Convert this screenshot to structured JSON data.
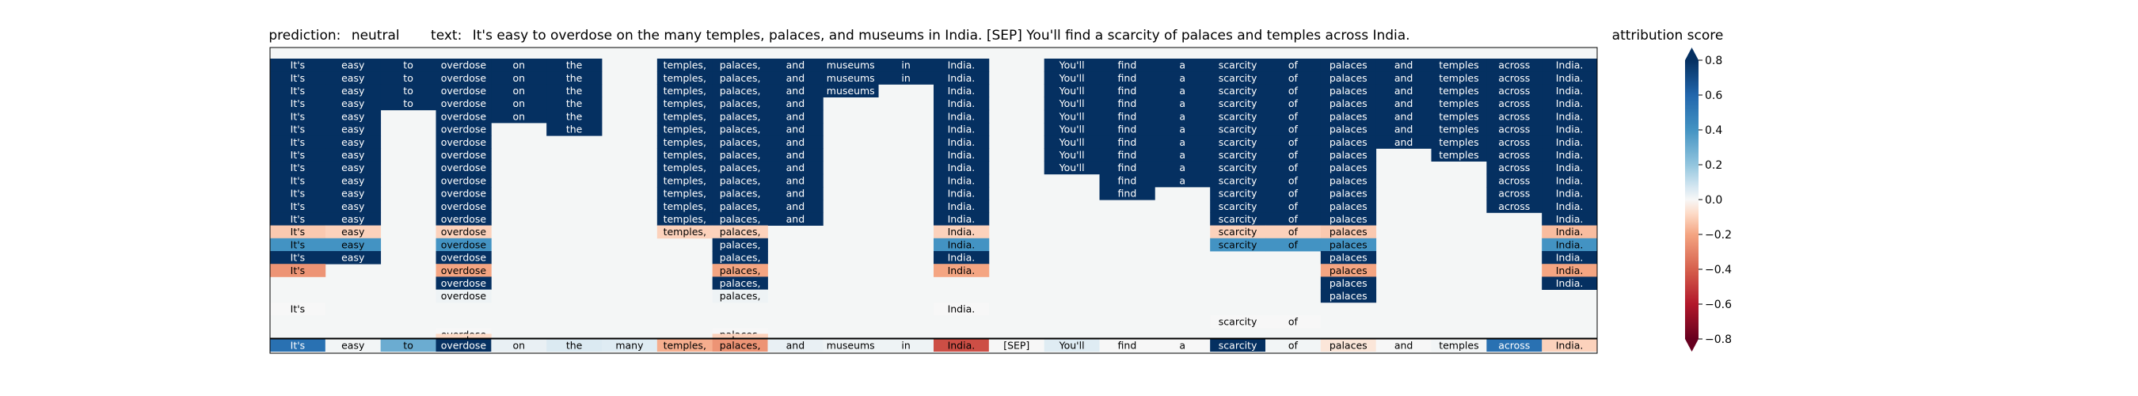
{
  "chart_data": {
    "type": "heatmap",
    "title": {
      "prediction_label": "prediction:",
      "prediction": "neutral",
      "text_label": "text:",
      "text": "It's easy to overdose on the many temples, palaces, and museums in India. [SEP] You'll find a scarcity of palaces and temples across India."
    },
    "colorbar": {
      "label": "attribution score",
      "ticks": [
        0.8,
        0.6,
        0.4,
        0.2,
        0.0,
        -0.2,
        -0.4,
        -0.6,
        -0.8
      ],
      "tick_labels": [
        "0.8",
        "0.6",
        "0.4",
        "0.2",
        "0.0",
        "−0.2",
        "−0.4",
        "−0.6",
        "−0.8"
      ],
      "range": [
        -0.8,
        0.8
      ],
      "colormap": "RdBu"
    },
    "tokens": [
      "It's",
      "easy",
      "to",
      "overdose",
      "on",
      "the",
      "many",
      "temples,",
      "palaces,",
      "and",
      "museums",
      "in",
      "India.",
      "[SEP]",
      "You'll",
      "find",
      "a",
      "scarcity",
      "of",
      "palaces",
      "and",
      "temples",
      "across",
      "India."
    ],
    "rows_present": [
      [
        1,
        1,
        1,
        1,
        1,
        1,
        0,
        1,
        1,
        1,
        1,
        1,
        1,
        0,
        1,
        1,
        1,
        1,
        1,
        1,
        1,
        1,
        1,
        1
      ],
      [
        1,
        1,
        1,
        1,
        1,
        1,
        0,
        1,
        1,
        1,
        1,
        1,
        1,
        0,
        1,
        1,
        1,
        1,
        1,
        1,
        1,
        1,
        1,
        1
      ],
      [
        1,
        1,
        1,
        1,
        1,
        1,
        0,
        1,
        1,
        1,
        1,
        0,
        1,
        0,
        1,
        1,
        1,
        1,
        1,
        1,
        1,
        1,
        1,
        1
      ],
      [
        1,
        1,
        1,
        1,
        1,
        1,
        0,
        1,
        1,
        1,
        0,
        0,
        1,
        0,
        1,
        1,
        1,
        1,
        1,
        1,
        1,
        1,
        1,
        1
      ],
      [
        1,
        1,
        0,
        1,
        1,
        1,
        0,
        1,
        1,
        1,
        0,
        0,
        1,
        0,
        1,
        1,
        1,
        1,
        1,
        1,
        1,
        1,
        1,
        1
      ],
      [
        1,
        1,
        0,
        1,
        0,
        1,
        0,
        1,
        1,
        1,
        0,
        0,
        1,
        0,
        1,
        1,
        1,
        1,
        1,
        1,
        1,
        1,
        1,
        1
      ],
      [
        1,
        1,
        0,
        1,
        0,
        0,
        0,
        1,
        1,
        1,
        0,
        0,
        1,
        0,
        1,
        1,
        1,
        1,
        1,
        1,
        1,
        1,
        1,
        1
      ],
      [
        1,
        1,
        0,
        1,
        0,
        0,
        0,
        1,
        1,
        1,
        0,
        0,
        1,
        0,
        1,
        1,
        1,
        1,
        1,
        1,
        0,
        1,
        1,
        1
      ],
      [
        1,
        1,
        0,
        1,
        0,
        0,
        0,
        1,
        1,
        1,
        0,
        0,
        1,
        0,
        1,
        1,
        1,
        1,
        1,
        1,
        0,
        0,
        1,
        1
      ],
      [
        1,
        1,
        0,
        1,
        0,
        0,
        0,
        1,
        1,
        1,
        0,
        0,
        1,
        0,
        0,
        1,
        1,
        1,
        1,
        1,
        0,
        0,
        1,
        1
      ],
      [
        1,
        1,
        0,
        1,
        0,
        0,
        0,
        1,
        1,
        1,
        0,
        0,
        1,
        0,
        0,
        1,
        0,
        1,
        1,
        1,
        0,
        0,
        1,
        1
      ],
      [
        1,
        1,
        0,
        1,
        0,
        0,
        0,
        1,
        1,
        1,
        0,
        0,
        1,
        0,
        0,
        0,
        0,
        1,
        1,
        1,
        0,
        0,
        1,
        1
      ],
      [
        1,
        1,
        0,
        1,
        0,
        0,
        0,
        1,
        1,
        1,
        0,
        0,
        1,
        0,
        0,
        0,
        0,
        1,
        1,
        1,
        0,
        0,
        0,
        1
      ],
      [
        1,
        1,
        0,
        1,
        0,
        0,
        0,
        1,
        1,
        0,
        0,
        0,
        1,
        0,
        0,
        0,
        0,
        1,
        1,
        1,
        0,
        0,
        0,
        1
      ],
      [
        1,
        1,
        0,
        1,
        0,
        0,
        0,
        0,
        1,
        0,
        0,
        0,
        1,
        0,
        0,
        0,
        0,
        1,
        1,
        1,
        0,
        0,
        0,
        1
      ],
      [
        1,
        1,
        0,
        1,
        0,
        0,
        0,
        0,
        1,
        0,
        0,
        0,
        1,
        0,
        0,
        0,
        0,
        0,
        0,
        1,
        0,
        0,
        0,
        1
      ],
      [
        1,
        0,
        0,
        1,
        0,
        0,
        0,
        0,
        1,
        0,
        0,
        0,
        1,
        0,
        0,
        0,
        0,
        0,
        0,
        1,
        0,
        0,
        0,
        1
      ],
      [
        0,
        0,
        0,
        1,
        0,
        0,
        0,
        0,
        1,
        0,
        0,
        0,
        0,
        0,
        0,
        0,
        0,
        0,
        0,
        1,
        0,
        0,
        0,
        1
      ],
      [
        0,
        0,
        0,
        1,
        0,
        0,
        0,
        0,
        1,
        0,
        0,
        0,
        0,
        0,
        0,
        0,
        0,
        0,
        0,
        1,
        0,
        0,
        0,
        0
      ],
      [
        1,
        0,
        0,
        0,
        0,
        0,
        0,
        0,
        0,
        0,
        0,
        0,
        1,
        0,
        0,
        0,
        0,
        0,
        0,
        0,
        0,
        0,
        0,
        0
      ],
      [
        0,
        0,
        0,
        0,
        0,
        0,
        0,
        0,
        0,
        0,
        0,
        0,
        0,
        0,
        0,
        0,
        0,
        1,
        1,
        0,
        0,
        0,
        0,
        0
      ],
      [
        0,
        0,
        0,
        1,
        0,
        0,
        0,
        0,
        1,
        0,
        0,
        0,
        0,
        0,
        0,
        0,
        0,
        0,
        0,
        0,
        0,
        0,
        0,
        0
      ]
    ],
    "rows_values": [
      [
        0.8,
        0.8,
        0.8,
        0.8,
        0.8,
        0.8,
        0,
        0.8,
        0.8,
        0.8,
        0.8,
        0.8,
        0.8,
        0,
        0.8,
        0.8,
        0.8,
        0.8,
        0.8,
        0.8,
        0.8,
        0.8,
        0.8,
        0.8
      ],
      [
        0.8,
        0.8,
        0.8,
        0.8,
        0.8,
        0.8,
        0,
        0.8,
        0.8,
        0.8,
        0.8,
        0.8,
        0.8,
        0,
        0.8,
        0.8,
        0.8,
        0.8,
        0.8,
        0.8,
        0.8,
        0.8,
        0.8,
        0.8
      ],
      [
        0.8,
        0.8,
        0.8,
        0.8,
        0.8,
        0.8,
        0,
        0.8,
        0.8,
        0.8,
        0.8,
        0,
        0.8,
        0,
        0.8,
        0.8,
        0.8,
        0.8,
        0.8,
        0.8,
        0.8,
        0.8,
        0.8,
        0.8
      ],
      [
        0.8,
        0.8,
        0.8,
        0.8,
        0.8,
        0.8,
        0,
        0.8,
        0.8,
        0.8,
        0,
        0,
        0.8,
        0,
        0.8,
        0.8,
        0.8,
        0.8,
        0.8,
        0.8,
        0.8,
        0.8,
        0.8,
        0.8
      ],
      [
        0.8,
        0.8,
        0,
        0.8,
        0.8,
        0.8,
        0,
        0.8,
        0.8,
        0.8,
        0,
        0,
        0.8,
        0,
        0.8,
        0.8,
        0.8,
        0.8,
        0.8,
        0.8,
        0.8,
        0.8,
        0.8,
        0.8
      ],
      [
        0.8,
        0.8,
        0,
        0.8,
        0,
        0.8,
        0,
        0.8,
        0.8,
        0.8,
        0,
        0,
        0.8,
        0,
        0.8,
        0.8,
        0.8,
        0.8,
        0.8,
        0.8,
        0.8,
        0.8,
        0.8,
        0.8
      ],
      [
        0.8,
        0.8,
        0,
        0.8,
        0,
        0,
        0,
        0.8,
        0.8,
        0.8,
        0,
        0,
        0.8,
        0,
        0.8,
        0.8,
        0.8,
        0.8,
        0.8,
        0.8,
        0.8,
        0.8,
        0.8,
        0.8
      ],
      [
        0.8,
        0.8,
        0,
        0.8,
        0,
        0,
        0,
        0.8,
        0.8,
        0.8,
        0,
        0,
        0.8,
        0,
        0.8,
        0.8,
        0.8,
        0.8,
        0.8,
        0.8,
        0,
        0.8,
        0.8,
        0.8
      ],
      [
        0.8,
        0.8,
        0,
        0.8,
        0,
        0,
        0,
        0.8,
        0.8,
        0.8,
        0,
        0,
        0.8,
        0,
        0.8,
        0.8,
        0.8,
        0.8,
        0.8,
        0.8,
        0,
        0,
        0.8,
        0.8
      ],
      [
        0.8,
        0.8,
        0,
        0.8,
        0,
        0,
        0,
        0.8,
        0.8,
        0.8,
        0,
        0,
        0.8,
        0,
        0,
        0.8,
        0.8,
        0.8,
        0.8,
        0.8,
        0,
        0,
        0.8,
        0.8
      ],
      [
        0.8,
        0.8,
        0,
        0.8,
        0,
        0,
        0,
        0.8,
        0.8,
        0.8,
        0,
        0,
        0.8,
        0,
        0,
        0.8,
        0,
        0.8,
        0.8,
        0.8,
        0,
        0,
        0.8,
        0.8
      ],
      [
        0.8,
        0.8,
        0,
        0.8,
        0,
        0,
        0,
        0.8,
        0.8,
        0.8,
        0,
        0,
        0.8,
        0,
        0,
        0,
        0,
        0.8,
        0.8,
        0.8,
        0,
        0,
        0.8,
        0.8
      ],
      [
        0.8,
        0.8,
        0,
        0.8,
        0,
        0,
        0,
        0.8,
        0.8,
        0.8,
        0,
        0,
        0.8,
        0,
        0,
        0,
        0,
        0.8,
        0.8,
        0.8,
        0,
        0,
        0,
        0.8
      ],
      [
        -0.12,
        -0.1,
        0,
        -0.1,
        0,
        0,
        0,
        -0.1,
        -0.1,
        -0.15,
        0,
        0,
        -0.1,
        0,
        0,
        0,
        0,
        -0.1,
        -0.1,
        -0.12,
        0,
        0,
        0,
        -0.15
      ],
      [
        0.4,
        0.4,
        0,
        0.4,
        0,
        0,
        0,
        0.35,
        0.8,
        0,
        0,
        0,
        0.4,
        0,
        0,
        0,
        0,
        0.4,
        0.4,
        0.4,
        0,
        0,
        0,
        0.4
      ],
      [
        0.8,
        0.8,
        0,
        0.8,
        0,
        0,
        0,
        0,
        0.8,
        0,
        0,
        0,
        0.8,
        0,
        0,
        0,
        0,
        0.8,
        0.8,
        0.8,
        0,
        0,
        0,
        0.8
      ],
      [
        -0.25,
        -0.25,
        0,
        -0.2,
        0,
        0,
        0,
        0,
        -0.2,
        0,
        0,
        0,
        -0.2,
        0,
        0,
        0,
        0,
        0,
        0,
        -0.2,
        0,
        0,
        0,
        -0.2
      ],
      [
        0.8,
        0,
        0,
        0.8,
        0,
        0,
        0,
        0,
        0.8,
        0,
        0,
        0,
        0.8,
        0,
        0,
        0,
        0,
        0,
        0,
        0.8,
        0,
        0,
        0,
        0.8
      ],
      [
        0,
        0,
        0,
        0.02,
        0,
        0,
        0,
        0,
        0.02,
        0,
        0,
        0,
        0,
        0,
        0,
        0,
        0,
        0,
        0,
        0.8,
        0,
        0,
        0,
        0.02
      ],
      [
        0,
        0,
        0,
        0.5,
        0,
        0,
        0,
        0,
        0.5,
        0,
        0,
        0,
        0,
        0,
        0,
        0,
        0,
        0,
        0,
        0.5,
        0,
        0,
        0,
        0
      ],
      [
        -0.1,
        0,
        0,
        0,
        0,
        0,
        0,
        0,
        0,
        0,
        0,
        0,
        -0.1,
        0,
        0,
        0,
        0,
        0,
        0,
        0,
        0,
        0,
        0,
        0
      ],
      [
        0,
        0,
        0,
        0,
        0,
        0,
        0,
        0,
        0,
        0,
        0,
        0,
        0,
        0,
        0,
        0,
        0,
        0.05,
        0.03,
        0,
        0,
        0,
        0,
        0
      ]
    ],
    "extra_row": {
      "present": [
        0,
        0,
        0,
        1,
        0,
        0,
        0,
        0,
        1,
        0,
        0,
        0,
        0,
        0,
        0,
        0,
        0,
        0,
        0,
        0,
        0,
        0,
        0,
        0
      ],
      "values": [
        0,
        0,
        0,
        -0.08,
        0,
        0,
        0,
        0,
        -0.1,
        0,
        0,
        0,
        0,
        0,
        0,
        0,
        0,
        0,
        0,
        0,
        0,
        0,
        0,
        0
      ]
    },
    "summary_row": [
      0.55,
      0.01,
      0.3,
      0.8,
      0.03,
      0.06,
      0.05,
      -0.18,
      -0.25,
      0.03,
      0.02,
      0.02,
      -0.45,
      0.0,
      0.05,
      0.0,
      0.0,
      0.8,
      0.01,
      -0.05,
      0.0,
      0.01,
      0.55,
      -0.1
    ],
    "background": "#f4f6f6"
  }
}
